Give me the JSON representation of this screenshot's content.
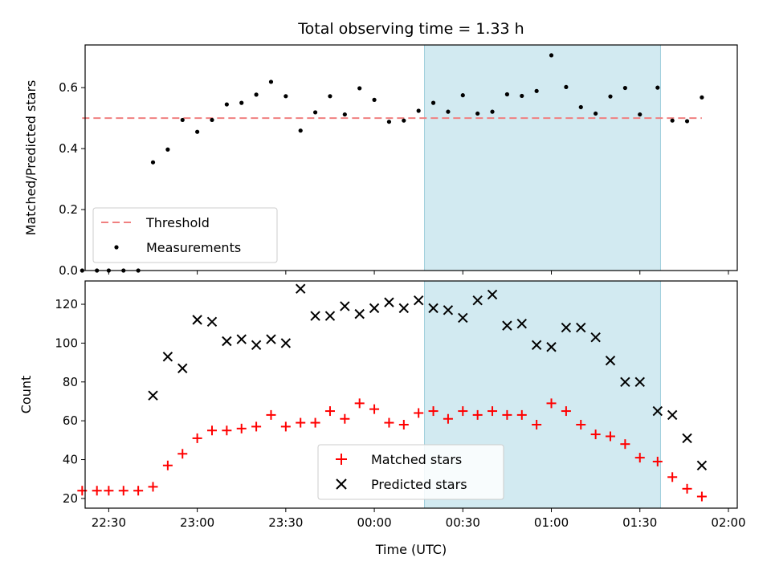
{
  "chart_data": [
    {
      "type": "scatter",
      "title": "Total observing time = 1.33 h",
      "ylabel": "Matched/Predicted stars",
      "xlabel": "",
      "xlim_minutes_from_midnight": [
        -98,
        123
      ],
      "ylim": [
        0,
        0.74
      ],
      "yticks": [
        0.0,
        0.2,
        0.4,
        0.6
      ],
      "ytick_labels": [
        "0.0",
        "0.2",
        "0.4",
        "0.6"
      ],
      "highlight_span": {
        "start": "00:17",
        "end": "01:37",
        "color": "#add8e6"
      },
      "legend": {
        "placement": "lower-left"
      },
      "threshold": {
        "name": "Threshold",
        "value": 0.5,
        "x_start": "22:21",
        "x_end": "01:51",
        "color": "#f08080"
      },
      "series": [
        {
          "name": "Measurements",
          "color": "#000000",
          "times": [
            "22:21",
            "22:26",
            "22:30",
            "22:35",
            "22:40",
            "22:45",
            "22:50",
            "22:55",
            "23:00",
            "23:05",
            "23:10",
            "23:15",
            "23:20",
            "23:25",
            "23:30",
            "23:35",
            "23:40",
            "23:45",
            "23:50",
            "23:55",
            "00:00",
            "00:05",
            "00:10",
            "00:15",
            "00:20",
            "00:25",
            "00:30",
            "00:35",
            "00:40",
            "00:45",
            "00:50",
            "00:55",
            "01:00",
            "01:05",
            "01:10",
            "01:15",
            "01:20",
            "01:25",
            "01:30",
            "01:36",
            "01:41",
            "01:46",
            "01:51"
          ],
          "values": [
            0.0,
            0.0,
            0.0,
            0.0,
            0.0,
            0.355,
            0.397,
            0.494,
            0.455,
            0.494,
            0.545,
            0.55,
            0.577,
            0.619,
            0.572,
            0.459,
            0.519,
            0.572,
            0.512,
            0.598,
            0.56,
            0.488,
            0.492,
            0.524,
            0.55,
            0.521,
            0.575,
            0.515,
            0.521,
            0.578,
            0.573,
            0.589,
            0.706,
            0.602,
            0.536,
            0.515,
            0.571,
            0.599,
            0.512,
            0.6,
            0.492,
            0.49,
            0.568
          ]
        }
      ]
    },
    {
      "type": "scatter",
      "title": "",
      "ylabel": "Count",
      "xlabel": "Time (UTC)",
      "xlim_minutes_from_midnight": [
        -98,
        123
      ],
      "ylim": [
        15,
        132
      ],
      "yticks": [
        20,
        40,
        60,
        80,
        100,
        120
      ],
      "ytick_labels": [
        "20",
        "40",
        "60",
        "80",
        "100",
        "120"
      ],
      "xticks": [
        "22:30",
        "23:00",
        "23:30",
        "00:00",
        "00:30",
        "01:00",
        "01:30",
        "02:00"
      ],
      "highlight_span": {
        "start": "00:17",
        "end": "01:37",
        "color": "#add8e6"
      },
      "legend": {
        "placement": "lower-center"
      },
      "series": [
        {
          "name": "Matched stars",
          "marker": "plus",
          "color": "#ff0000",
          "times": [
            "22:21",
            "22:26",
            "22:30",
            "22:35",
            "22:40",
            "22:45",
            "22:50",
            "22:55",
            "23:00",
            "23:05",
            "23:10",
            "23:15",
            "23:20",
            "23:25",
            "23:30",
            "23:35",
            "23:40",
            "23:45",
            "23:50",
            "23:55",
            "00:00",
            "00:05",
            "00:10",
            "00:15",
            "00:20",
            "00:25",
            "00:30",
            "00:35",
            "00:40",
            "00:45",
            "00:50",
            "00:55",
            "01:00",
            "01:05",
            "01:10",
            "01:15",
            "01:20",
            "01:25",
            "01:30",
            "01:36",
            "01:41",
            "01:46",
            "01:51"
          ],
          "values": [
            24,
            24,
            24,
            24,
            24,
            26,
            37,
            43,
            51,
            55,
            55,
            56,
            57,
            63,
            57,
            59,
            59,
            65,
            61,
            69,
            66,
            59,
            58,
            64,
            65,
            61,
            65,
            63,
            65,
            63,
            63,
            58,
            69,
            65,
            58,
            53,
            52,
            48,
            41,
            39,
            31,
            25,
            21
          ]
        },
        {
          "name": "Predicted stars",
          "marker": "x",
          "color": "#000000",
          "times": [
            "22:45",
            "22:50",
            "22:55",
            "23:00",
            "23:05",
            "23:10",
            "23:15",
            "23:20",
            "23:25",
            "23:30",
            "23:35",
            "23:40",
            "23:45",
            "23:50",
            "23:55",
            "00:00",
            "00:05",
            "00:10",
            "00:15",
            "00:20",
            "00:25",
            "00:30",
            "00:35",
            "00:40",
            "00:45",
            "00:50",
            "00:55",
            "01:00",
            "01:05",
            "01:10",
            "01:15",
            "01:20",
            "01:25",
            "01:30",
            "01:36",
            "01:41",
            "01:46",
            "01:51"
          ],
          "values": [
            73,
            93,
            87,
            112,
            111,
            101,
            102,
            99,
            102,
            100,
            128,
            114,
            114,
            119,
            115,
            118,
            121,
            118,
            122,
            118,
            117,
            113,
            122,
            125,
            109,
            110,
            99,
            98,
            108,
            108,
            103,
            91,
            80,
            80,
            65,
            63,
            51,
            37
          ]
        }
      ]
    }
  ]
}
